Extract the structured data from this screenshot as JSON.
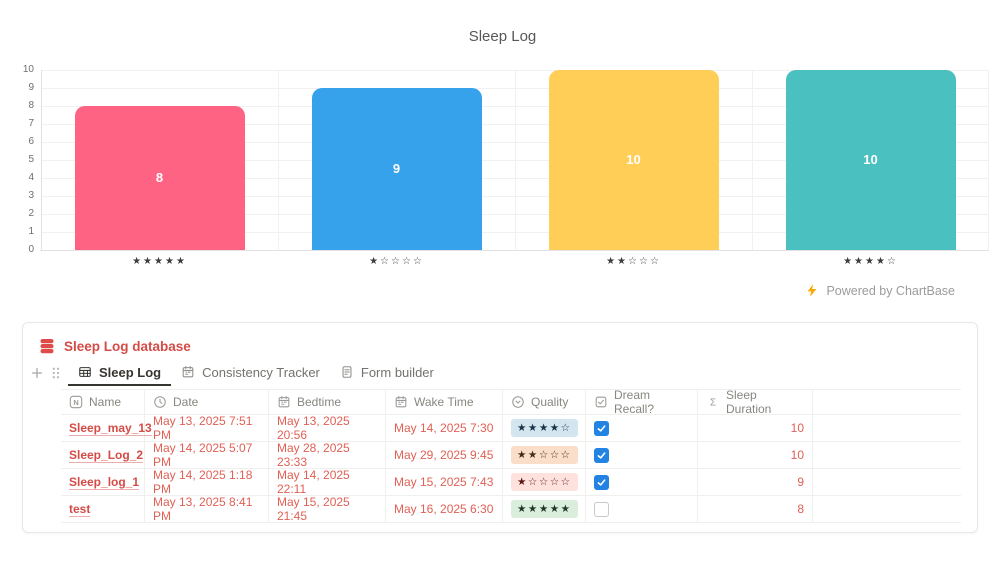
{
  "chart_data": {
    "type": "bar",
    "title": "Sleep Log",
    "categories": [
      "★★★★★",
      "★☆☆☆☆",
      "★★☆☆☆",
      "★★★★☆"
    ],
    "values": [
      8,
      9,
      10,
      10
    ],
    "value_labels": [
      "8",
      "9",
      "10",
      "10"
    ],
    "bar_colors": [
      "#FF6384",
      "#36A2EB",
      "#FFCE56",
      "#4BC0C0"
    ],
    "value_label_color": "#FFFFFF",
    "xlabel": "",
    "ylabel": "",
    "ylim": [
      0,
      10
    ],
    "ytick_step": 1,
    "grid": true,
    "legend": "none"
  },
  "branding": {
    "label": "Powered by ChartBase",
    "bolt_color": "#F7A901",
    "text_color": "#9B9B9B"
  },
  "database": {
    "title": "Sleep Log database",
    "title_color": "#D44C47",
    "checkbox_color": "#2383E2",
    "tabs": [
      {
        "label": "Sleep Log",
        "icon": "table-icon",
        "active": true
      },
      {
        "label": "Consistency Tracker",
        "icon": "calendar-icon",
        "active": false
      },
      {
        "label": "Form builder",
        "icon": "form-icon",
        "active": false
      }
    ],
    "columns": [
      {
        "label": "Name",
        "icon": "title-icon"
      },
      {
        "label": "Date",
        "icon": "clock-icon"
      },
      {
        "label": "Bedtime",
        "icon": "calendar-icon"
      },
      {
        "label": "Wake Time",
        "icon": "calendar-icon"
      },
      {
        "label": "Quality",
        "icon": "select-icon"
      },
      {
        "label": "Dream Recall?",
        "icon": "checkbox-icon"
      },
      {
        "label": "Sleep Duration",
        "icon": "sigma-icon"
      }
    ],
    "rows": [
      {
        "name": "Sleep_may_13",
        "date": "May 13, 2025 7:51 PM",
        "bedtime": "May 13, 2025 20:56",
        "wake_time": "May 14, 2025 7:30",
        "quality": "★★★★☆",
        "quality_bg": "#D3E5EF",
        "quality_fg": "#183347",
        "dream_recall": true,
        "sleep_duration": "10"
      },
      {
        "name": "Sleep_Log_2",
        "date": "May 14, 2025 5:07 PM",
        "bedtime": "May 28, 2025 23:33",
        "wake_time": "May 29, 2025 9:45",
        "quality": "★★☆☆☆",
        "quality_bg": "#FADEC9",
        "quality_fg": "#402C1B",
        "dream_recall": true,
        "sleep_duration": "10"
      },
      {
        "name": "Sleep_log_1",
        "date": "May 14, 2025 1:18 PM",
        "bedtime": "May 14, 2025 22:11",
        "wake_time": "May 15, 2025 7:43",
        "quality": "★☆☆☆☆",
        "quality_bg": "#FFE2DD",
        "quality_fg": "#5D1715",
        "dream_recall": true,
        "sleep_duration": "9"
      },
      {
        "name": "test",
        "date": "May 13, 2025 8:41 PM",
        "bedtime": "May 15, 2025 21:45",
        "wake_time": "May 16, 2025 6:30",
        "quality": "★★★★★",
        "quality_bg": "#DBEDDB",
        "quality_fg": "#1C3829",
        "dream_recall": false,
        "sleep_duration": "8"
      }
    ]
  }
}
